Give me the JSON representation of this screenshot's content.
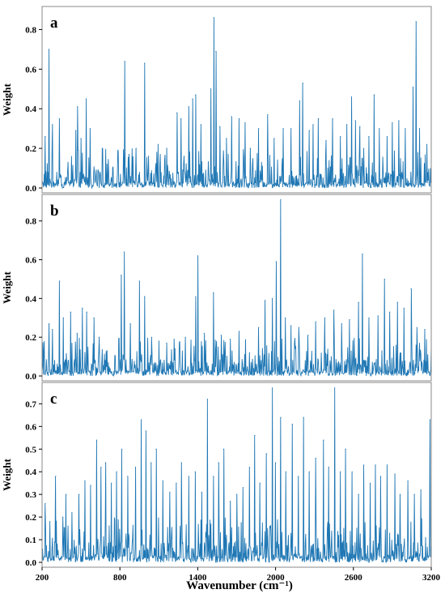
{
  "chart_data": {
    "type": "line",
    "xlabel": "Wavenumber (cm⁻¹)",
    "xlim": [
      200,
      3200
    ],
    "xticks": [
      200,
      800,
      1400,
      2000,
      2600,
      3200
    ],
    "xtick_labels": [
      "200",
      "800",
      "1400",
      "2000",
      "2600",
      "3200"
    ],
    "color": "#1f77b4",
    "grid": false,
    "legend": "none",
    "note_dense_series": "Each panel shows a dense spectrum of weights across 200-3200 cm-1; listed peaks are the prominent maxima read from the figure, remaining points are low-level noise.",
    "panels": [
      {
        "letter": "a",
        "ylabel": "Weight",
        "ylim": [
          0,
          0.9
        ],
        "yticks": [
          0.0,
          0.2,
          0.4,
          0.6,
          0.8
        ],
        "ytick_labels": [
          "0.0",
          "0.2",
          "0.4",
          "0.6",
          "0.8"
        ],
        "peaks": [
          {
            "x": 225,
            "y": 0.26
          },
          {
            "x": 253,
            "y": 0.7
          },
          {
            "x": 280,
            "y": 0.32
          },
          {
            "x": 333,
            "y": 0.35
          },
          {
            "x": 460,
            "y": 0.29
          },
          {
            "x": 473,
            "y": 0.41
          },
          {
            "x": 500,
            "y": 0.25
          },
          {
            "x": 540,
            "y": 0.45
          },
          {
            "x": 570,
            "y": 0.3
          },
          {
            "x": 665,
            "y": 0.2
          },
          {
            "x": 700,
            "y": 0.12
          },
          {
            "x": 745,
            "y": 0.1
          },
          {
            "x": 837,
            "y": 0.64
          },
          {
            "x": 870,
            "y": 0.17
          },
          {
            "x": 925,
            "y": 0.2
          },
          {
            "x": 990,
            "y": 0.63
          },
          {
            "x": 1020,
            "y": 0.16
          },
          {
            "x": 1095,
            "y": 0.22
          },
          {
            "x": 1160,
            "y": 0.2
          },
          {
            "x": 1240,
            "y": 0.38
          },
          {
            "x": 1270,
            "y": 0.35
          },
          {
            "x": 1330,
            "y": 0.41
          },
          {
            "x": 1360,
            "y": 0.45
          },
          {
            "x": 1383,
            "y": 0.47
          },
          {
            "x": 1425,
            "y": 0.32
          },
          {
            "x": 1500,
            "y": 0.5
          },
          {
            "x": 1525,
            "y": 0.86
          },
          {
            "x": 1540,
            "y": 0.69
          },
          {
            "x": 1570,
            "y": 0.31
          },
          {
            "x": 1620,
            "y": 0.25
          },
          {
            "x": 1660,
            "y": 0.36
          },
          {
            "x": 1720,
            "y": 0.35
          },
          {
            "x": 1765,
            "y": 0.33
          },
          {
            "x": 1805,
            "y": 0.2
          },
          {
            "x": 1870,
            "y": 0.3
          },
          {
            "x": 1940,
            "y": 0.37
          },
          {
            "x": 1990,
            "y": 0.25
          },
          {
            "x": 2060,
            "y": 0.3
          },
          {
            "x": 2120,
            "y": 0.3
          },
          {
            "x": 2185,
            "y": 0.44
          },
          {
            "x": 2210,
            "y": 0.53
          },
          {
            "x": 2260,
            "y": 0.29
          },
          {
            "x": 2290,
            "y": 0.32
          },
          {
            "x": 2330,
            "y": 0.35
          },
          {
            "x": 2390,
            "y": 0.24
          },
          {
            "x": 2440,
            "y": 0.35
          },
          {
            "x": 2500,
            "y": 0.26
          },
          {
            "x": 2550,
            "y": 0.32
          },
          {
            "x": 2585,
            "y": 0.46
          },
          {
            "x": 2615,
            "y": 0.34
          },
          {
            "x": 2650,
            "y": 0.31
          },
          {
            "x": 2680,
            "y": 0.2
          },
          {
            "x": 2718,
            "y": 0.26
          },
          {
            "x": 2760,
            "y": 0.47
          },
          {
            "x": 2800,
            "y": 0.3
          },
          {
            "x": 2860,
            "y": 0.26
          },
          {
            "x": 2900,
            "y": 0.33
          },
          {
            "x": 2950,
            "y": 0.34
          },
          {
            "x": 3000,
            "y": 0.3
          },
          {
            "x": 3060,
            "y": 0.51
          },
          {
            "x": 3083,
            "y": 0.84
          },
          {
            "x": 3110,
            "y": 0.3
          },
          {
            "x": 3165,
            "y": 0.22
          }
        ]
      },
      {
        "letter": "b",
        "ylabel": "Weight",
        "ylim": [
          0,
          0.92
        ],
        "yticks": [
          0.0,
          0.2,
          0.4,
          0.6,
          0.8
        ],
        "ytick_labels": [
          "0.0",
          "0.2",
          "0.4",
          "0.6",
          "0.8"
        ],
        "peaks": [
          {
            "x": 215,
            "y": 0.13
          },
          {
            "x": 255,
            "y": 0.27
          },
          {
            "x": 280,
            "y": 0.24
          },
          {
            "x": 335,
            "y": 0.49
          },
          {
            "x": 365,
            "y": 0.3
          },
          {
            "x": 420,
            "y": 0.33
          },
          {
            "x": 470,
            "y": 0.22
          },
          {
            "x": 510,
            "y": 0.35
          },
          {
            "x": 545,
            "y": 0.33
          },
          {
            "x": 600,
            "y": 0.3
          },
          {
            "x": 640,
            "y": 0.2
          },
          {
            "x": 700,
            "y": 0.13
          },
          {
            "x": 810,
            "y": 0.52
          },
          {
            "x": 833,
            "y": 0.64
          },
          {
            "x": 880,
            "y": 0.27
          },
          {
            "x": 950,
            "y": 0.49
          },
          {
            "x": 990,
            "y": 0.41
          },
          {
            "x": 1045,
            "y": 0.2
          },
          {
            "x": 1100,
            "y": 0.18
          },
          {
            "x": 1160,
            "y": 0.17
          },
          {
            "x": 1225,
            "y": 0.14
          },
          {
            "x": 1305,
            "y": 0.2
          },
          {
            "x": 1385,
            "y": 0.41
          },
          {
            "x": 1400,
            "y": 0.62
          },
          {
            "x": 1450,
            "y": 0.22
          },
          {
            "x": 1520,
            "y": 0.43
          },
          {
            "x": 1580,
            "y": 0.21
          },
          {
            "x": 1650,
            "y": 0.19
          },
          {
            "x": 1720,
            "y": 0.23
          },
          {
            "x": 1800,
            "y": 0.12
          },
          {
            "x": 1870,
            "y": 0.25
          },
          {
            "x": 1920,
            "y": 0.39
          },
          {
            "x": 1975,
            "y": 0.4
          },
          {
            "x": 2005,
            "y": 0.59
          },
          {
            "x": 2040,
            "y": 0.91
          },
          {
            "x": 2075,
            "y": 0.3
          },
          {
            "x": 2120,
            "y": 0.26
          },
          {
            "x": 2180,
            "y": 0.25
          },
          {
            "x": 2250,
            "y": 0.21
          },
          {
            "x": 2310,
            "y": 0.28
          },
          {
            "x": 2380,
            "y": 0.3
          },
          {
            "x": 2450,
            "y": 0.34
          },
          {
            "x": 2510,
            "y": 0.27
          },
          {
            "x": 2570,
            "y": 0.29
          },
          {
            "x": 2640,
            "y": 0.38
          },
          {
            "x": 2670,
            "y": 0.63
          },
          {
            "x": 2720,
            "y": 0.3
          },
          {
            "x": 2790,
            "y": 0.31
          },
          {
            "x": 2840,
            "y": 0.5
          },
          {
            "x": 2880,
            "y": 0.33
          },
          {
            "x": 2940,
            "y": 0.38
          },
          {
            "x": 2990,
            "y": 0.35
          },
          {
            "x": 3045,
            "y": 0.45
          },
          {
            "x": 3090,
            "y": 0.25
          },
          {
            "x": 3150,
            "y": 0.24
          }
        ]
      },
      {
        "letter": "c",
        "ylabel": "Weight",
        "ylim": [
          0,
          0.78
        ],
        "yticks": [
          0.0,
          0.1,
          0.2,
          0.3,
          0.4,
          0.5,
          0.6,
          0.7
        ],
        "ytick_labels": [
          "0.0",
          "0.1",
          "0.2",
          "0.3",
          "0.4",
          "0.5",
          "0.6",
          "0.7"
        ],
        "peaks": [
          {
            "x": 225,
            "y": 0.26
          },
          {
            "x": 260,
            "y": 0.18
          },
          {
            "x": 305,
            "y": 0.38
          },
          {
            "x": 360,
            "y": 0.2
          },
          {
            "x": 385,
            "y": 0.3
          },
          {
            "x": 430,
            "y": 0.22
          },
          {
            "x": 485,
            "y": 0.3
          },
          {
            "x": 530,
            "y": 0.36
          },
          {
            "x": 575,
            "y": 0.34
          },
          {
            "x": 620,
            "y": 0.54
          },
          {
            "x": 655,
            "y": 0.42
          },
          {
            "x": 690,
            "y": 0.44
          },
          {
            "x": 735,
            "y": 0.35
          },
          {
            "x": 775,
            "y": 0.4
          },
          {
            "x": 815,
            "y": 0.5
          },
          {
            "x": 860,
            "y": 0.38
          },
          {
            "x": 920,
            "y": 0.42
          },
          {
            "x": 965,
            "y": 0.63
          },
          {
            "x": 1000,
            "y": 0.58
          },
          {
            "x": 1040,
            "y": 0.44
          },
          {
            "x": 1080,
            "y": 0.5
          },
          {
            "x": 1130,
            "y": 0.36
          },
          {
            "x": 1185,
            "y": 0.31
          },
          {
            "x": 1235,
            "y": 0.35
          },
          {
            "x": 1275,
            "y": 0.44
          },
          {
            "x": 1330,
            "y": 0.38
          },
          {
            "x": 1380,
            "y": 0.4
          },
          {
            "x": 1430,
            "y": 0.31
          },
          {
            "x": 1475,
            "y": 0.72
          },
          {
            "x": 1520,
            "y": 0.38
          },
          {
            "x": 1560,
            "y": 0.44
          },
          {
            "x": 1600,
            "y": 0.5
          },
          {
            "x": 1650,
            "y": 0.27
          },
          {
            "x": 1700,
            "y": 0.3
          },
          {
            "x": 1750,
            "y": 0.33
          },
          {
            "x": 1800,
            "y": 0.42
          },
          {
            "x": 1840,
            "y": 0.56
          },
          {
            "x": 1880,
            "y": 0.35
          },
          {
            "x": 1930,
            "y": 0.48
          },
          {
            "x": 1975,
            "y": 0.77
          },
          {
            "x": 2000,
            "y": 0.44
          },
          {
            "x": 2040,
            "y": 0.64
          },
          {
            "x": 2080,
            "y": 0.4
          },
          {
            "x": 2130,
            "y": 0.61
          },
          {
            "x": 2175,
            "y": 0.38
          },
          {
            "x": 2215,
            "y": 0.64
          },
          {
            "x": 2260,
            "y": 0.4
          },
          {
            "x": 2310,
            "y": 0.46
          },
          {
            "x": 2370,
            "y": 0.54
          },
          {
            "x": 2410,
            "y": 0.42
          },
          {
            "x": 2455,
            "y": 0.77
          },
          {
            "x": 2500,
            "y": 0.4
          },
          {
            "x": 2540,
            "y": 0.5
          },
          {
            "x": 2590,
            "y": 0.4
          },
          {
            "x": 2640,
            "y": 0.3
          },
          {
            "x": 2680,
            "y": 0.43
          },
          {
            "x": 2730,
            "y": 0.35
          },
          {
            "x": 2770,
            "y": 0.43
          },
          {
            "x": 2810,
            "y": 0.38
          },
          {
            "x": 2860,
            "y": 0.43
          },
          {
            "x": 2920,
            "y": 0.39
          },
          {
            "x": 2960,
            "y": 0.3
          },
          {
            "x": 3020,
            "y": 0.36
          },
          {
            "x": 3070,
            "y": 0.3
          },
          {
            "x": 3120,
            "y": 0.32
          },
          {
            "x": 3190,
            "y": 0.63
          }
        ]
      }
    ]
  }
}
